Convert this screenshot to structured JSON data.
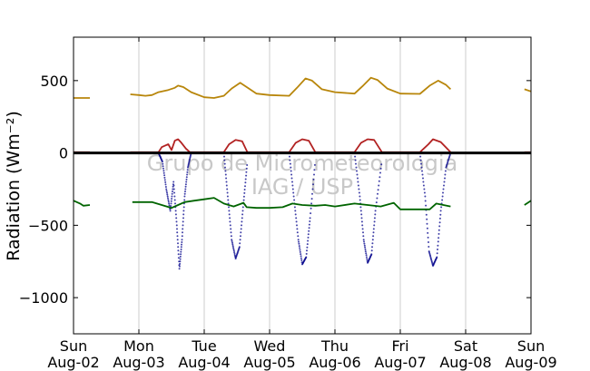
{
  "chart_data": {
    "type": "line",
    "ylabel": "Radiation (Wm⁻²)",
    "ylim": [
      -1250,
      800
    ],
    "yticks": [
      500,
      0,
      -500,
      -1000
    ],
    "ytick_labels": [
      "500",
      "0",
      "−500",
      "−1000"
    ],
    "xlim": [
      0,
      7
    ],
    "x_unit": "days since Sun Aug-02",
    "xticks": [
      0,
      1,
      2,
      3,
      4,
      5,
      6,
      7
    ],
    "xtick_labels": [
      [
        "Sun",
        "Aug-02"
      ],
      [
        "Mon",
        "Aug-03"
      ],
      [
        "Tue",
        "Aug-04"
      ],
      [
        "Wed",
        "Aug-05"
      ],
      [
        "Thu",
        "Aug-06"
      ],
      [
        "Fri",
        "Aug-07"
      ],
      [
        "Sat",
        "Aug-08"
      ],
      [
        "Sun",
        "Aug-09"
      ]
    ],
    "grid": "vertical",
    "watermark": [
      "Grupo de Micrometeorologia",
      "IAG / USP"
    ],
    "series": [
      {
        "color": "#b8860b",
        "style": "line",
        "segments": [
          [
            [
              0.0,
              380
            ],
            [
              0.25,
              380
            ]
          ],
          [
            [
              0.87,
              405
            ],
            [
              1.0,
              400
            ],
            [
              1.1,
              395
            ],
            [
              1.2,
              400
            ],
            [
              1.3,
              420
            ],
            [
              1.45,
              435
            ],
            [
              1.55,
              450
            ],
            [
              1.6,
              465
            ],
            [
              1.68,
              455
            ],
            [
              1.8,
              420
            ],
            [
              2.0,
              385
            ],
            [
              2.15,
              380
            ],
            [
              2.3,
              395
            ],
            [
              2.42,
              445
            ],
            [
              2.55,
              485
            ],
            [
              2.65,
              455
            ],
            [
              2.8,
              410
            ],
            [
              3.0,
              400
            ],
            [
              3.3,
              395
            ],
            [
              3.42,
              450
            ],
            [
              3.55,
              515
            ],
            [
              3.65,
              500
            ],
            [
              3.8,
              440
            ],
            [
              4.0,
              420
            ],
            [
              4.3,
              410
            ],
            [
              4.42,
              460
            ],
            [
              4.55,
              520
            ],
            [
              4.65,
              505
            ],
            [
              4.8,
              445
            ],
            [
              5.0,
              410
            ],
            [
              5.3,
              408
            ],
            [
              5.45,
              465
            ],
            [
              5.58,
              500
            ],
            [
              5.7,
              470
            ],
            [
              5.77,
              440
            ]
          ],
          [
            [
              6.9,
              440
            ],
            [
              7.0,
              425
            ]
          ]
        ]
      },
      {
        "color": "#b22222",
        "style": "line",
        "segments": [
          [
            [
              0.0,
              5
            ],
            [
              0.25,
              5
            ]
          ],
          [
            [
              0.87,
              5
            ],
            [
              1.3,
              5
            ],
            [
              1.35,
              40
            ],
            [
              1.4,
              50
            ],
            [
              1.45,
              60
            ],
            [
              1.5,
              20
            ],
            [
              1.55,
              85
            ],
            [
              1.6,
              95
            ],
            [
              1.65,
              70
            ],
            [
              1.72,
              30
            ],
            [
              1.78,
              5
            ],
            [
              2.3,
              5
            ],
            [
              2.38,
              60
            ],
            [
              2.48,
              90
            ],
            [
              2.58,
              80
            ],
            [
              2.66,
              5
            ],
            [
              3.3,
              5
            ],
            [
              3.4,
              70
            ],
            [
              3.5,
              95
            ],
            [
              3.6,
              85
            ],
            [
              3.7,
              5
            ],
            [
              4.3,
              5
            ],
            [
              4.4,
              70
            ],
            [
              4.5,
              95
            ],
            [
              4.6,
              90
            ],
            [
              4.72,
              5
            ],
            [
              5.3,
              5
            ],
            [
              5.43,
              60
            ],
            [
              5.5,
              95
            ],
            [
              5.62,
              75
            ],
            [
              5.77,
              5
            ]
          ],
          [
            [
              6.9,
              5
            ],
            [
              7.0,
              5
            ]
          ]
        ]
      },
      {
        "color": "#00008b",
        "style": "dots",
        "segments": [
          [
            [
              1.3,
              0
            ],
            [
              1.36,
              -60
            ],
            [
              1.42,
              -250
            ],
            [
              1.48,
              -400
            ],
            [
              1.53,
              -200
            ],
            [
              1.58,
              -500
            ],
            [
              1.62,
              -800
            ],
            [
              1.66,
              -600
            ],
            [
              1.7,
              -300
            ],
            [
              1.75,
              -100
            ],
            [
              1.8,
              0
            ]
          ],
          [
            [
              2.3,
              0
            ],
            [
              2.36,
              -300
            ],
            [
              2.42,
              -600
            ],
            [
              2.48,
              -730
            ],
            [
              2.54,
              -650
            ],
            [
              2.6,
              -350
            ],
            [
              2.66,
              -60
            ]
          ],
          [
            [
              3.3,
              0
            ],
            [
              3.37,
              -300
            ],
            [
              3.44,
              -600
            ],
            [
              3.5,
              -770
            ],
            [
              3.56,
              -720
            ],
            [
              3.62,
              -450
            ],
            [
              3.7,
              -50
            ]
          ],
          [
            [
              4.3,
              0
            ],
            [
              4.38,
              -300
            ],
            [
              4.44,
              -600
            ],
            [
              4.5,
              -760
            ],
            [
              4.56,
              -700
            ],
            [
              4.62,
              -400
            ],
            [
              4.72,
              -50
            ]
          ],
          [
            [
              5.3,
              0
            ],
            [
              5.38,
              -300
            ],
            [
              5.44,
              -680
            ],
            [
              5.5,
              -780
            ],
            [
              5.56,
              -720
            ],
            [
              5.62,
              -400
            ],
            [
              5.7,
              -100
            ],
            [
              5.77,
              0
            ]
          ]
        ]
      },
      {
        "color": "#006400",
        "style": "line",
        "segments": [
          [
            [
              0.0,
              -330
            ],
            [
              0.05,
              -340
            ],
            [
              0.1,
              -350
            ],
            [
              0.15,
              -365
            ],
            [
              0.25,
              -360
            ]
          ],
          [
            [
              0.9,
              -340
            ],
            [
              1.2,
              -340
            ],
            [
              1.35,
              -360
            ],
            [
              1.5,
              -380
            ],
            [
              1.6,
              -360
            ],
            [
              1.7,
              -340
            ],
            [
              1.85,
              -330
            ],
            [
              2.0,
              -320
            ],
            [
              2.15,
              -310
            ],
            [
              2.3,
              -350
            ],
            [
              2.45,
              -370
            ],
            [
              2.6,
              -345
            ],
            [
              2.65,
              -375
            ],
            [
              2.8,
              -380
            ],
            [
              3.0,
              -380
            ],
            [
              3.2,
              -375
            ],
            [
              3.35,
              -350
            ],
            [
              3.5,
              -360
            ],
            [
              3.7,
              -365
            ],
            [
              3.85,
              -360
            ],
            [
              4.0,
              -370
            ],
            [
              4.3,
              -350
            ],
            [
              4.5,
              -360
            ],
            [
              4.7,
              -370
            ],
            [
              4.9,
              -345
            ],
            [
              5.0,
              -390
            ],
            [
              5.3,
              -390
            ],
            [
              5.45,
              -390
            ],
            [
              5.55,
              -350
            ],
            [
              5.77,
              -370
            ]
          ],
          [
            [
              6.9,
              -360
            ],
            [
              7.0,
              -330
            ]
          ]
        ]
      },
      {
        "color": "#000000",
        "style": "thick",
        "segments": [
          [
            [
              0.0,
              0
            ],
            [
              7.0,
              0
            ]
          ]
        ]
      }
    ]
  }
}
